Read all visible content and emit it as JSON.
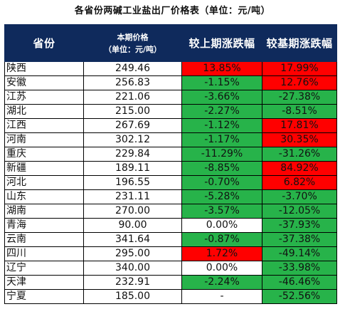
{
  "title": "各省份两碱工业盐出厂价格表（单位：元/吨）",
  "table": {
    "headers": {
      "province": "省份",
      "price_line1": "本期价格",
      "price_line2": "（单位：元/吨）",
      "chg_prev": "较上期涨跌幅",
      "chg_base": "较基期涨跌幅"
    },
    "rows": [
      {
        "province": "陕西",
        "price": "249.46",
        "chg_prev": "13.85%",
        "chg_base": "17.99%"
      },
      {
        "province": "安徽",
        "price": "256.83",
        "chg_prev": "-1.15%",
        "chg_base": "12.76%"
      },
      {
        "province": "江苏",
        "price": "221.06",
        "chg_prev": "-3.66%",
        "chg_base": "-27.38%"
      },
      {
        "province": "湖北",
        "price": "215.00",
        "chg_prev": "-2.27%",
        "chg_base": "-8.51%"
      },
      {
        "province": "江西",
        "price": "267.69",
        "chg_prev": "-1.12%",
        "chg_base": "17.81%"
      },
      {
        "province": "河南",
        "price": "302.12",
        "chg_prev": "-1.17%",
        "chg_base": "30.35%"
      },
      {
        "province": "重庆",
        "price": "229.84",
        "chg_prev": "-11.29%",
        "chg_base": "-31.26%"
      },
      {
        "province": "新疆",
        "price": "189.11",
        "chg_prev": "-8.85%",
        "chg_base": "84.92%"
      },
      {
        "province": "河北",
        "price": "196.55",
        "chg_prev": "-0.70%",
        "chg_base": "6.82%"
      },
      {
        "province": "山东",
        "price": "231.11",
        "chg_prev": "-5.28%",
        "chg_base": "-3.70%"
      },
      {
        "province": "湖南",
        "price": "270.00",
        "chg_prev": "-3.57%",
        "chg_base": "-12.05%"
      },
      {
        "province": "青海",
        "price": "90.00",
        "chg_prev": "0.00%",
        "chg_base": "-37.93%"
      },
      {
        "province": "云南",
        "price": "341.64",
        "chg_prev": "-0.87%",
        "chg_base": "-37.38%"
      },
      {
        "province": "四川",
        "price": "295.00",
        "chg_prev": "1.72%",
        "chg_base": "-49.14%"
      },
      {
        "province": "辽宁",
        "price": "340.00",
        "chg_prev": "0.00%",
        "chg_base": "-33.98%"
      },
      {
        "province": "天津",
        "price": "232.91",
        "chg_prev": "-2.24%",
        "chg_base": "-46.46%"
      },
      {
        "province": "宁夏",
        "price": "185.00",
        "chg_prev": "-",
        "chg_base": "-52.56%"
      }
    ]
  },
  "colors": {
    "header_bg": "#0f2a5c",
    "increase": "#ff0000",
    "decrease": "#27b34a",
    "neutral": "#ffffff"
  }
}
